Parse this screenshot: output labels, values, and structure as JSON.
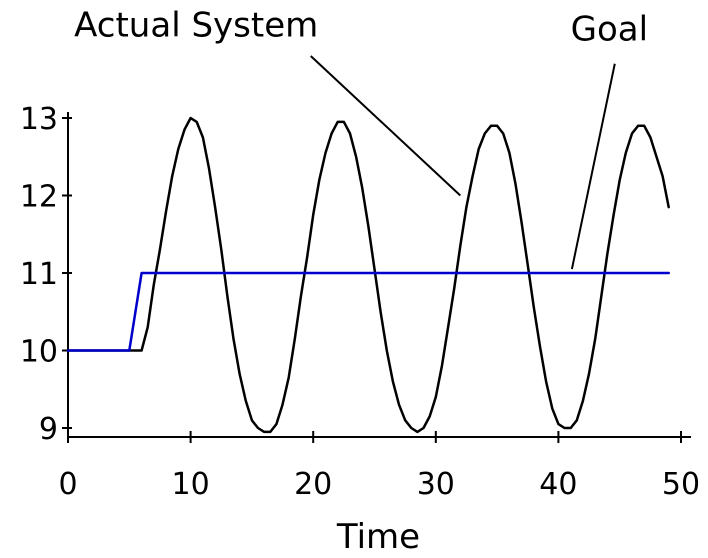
{
  "chart_data": {
    "type": "line",
    "xlabel": "Time",
    "ylabel": "",
    "xlim": [
      0,
      50
    ],
    "ylim": [
      9,
      13
    ],
    "x_ticks": [
      0,
      10,
      20,
      30,
      40,
      50
    ],
    "y_ticks": [
      9,
      10,
      11,
      12,
      13
    ],
    "x_tick_labels": [
      "0",
      "10",
      "20",
      "30",
      "40",
      "50"
    ],
    "y_tick_labels": [
      "9",
      "10",
      "11",
      "12",
      "13"
    ],
    "grid": false,
    "legend": "none",
    "series": [
      {
        "name": "Actual System",
        "color": "#000000",
        "points": [
          [
            0,
            10
          ],
          [
            1,
            10
          ],
          [
            2,
            10
          ],
          [
            3,
            10
          ],
          [
            4,
            10
          ],
          [
            5,
            10
          ],
          [
            5.5,
            10
          ],
          [
            6,
            10
          ],
          [
            6.5,
            10.3
          ],
          [
            7,
            10.85
          ],
          [
            7.5,
            11.3
          ],
          [
            8,
            11.8
          ],
          [
            8.5,
            12.25
          ],
          [
            9,
            12.6
          ],
          [
            9.5,
            12.85
          ],
          [
            10,
            13
          ],
          [
            10.5,
            12.95
          ],
          [
            11,
            12.75
          ],
          [
            11.5,
            12.35
          ],
          [
            12,
            11.85
          ],
          [
            12.5,
            11.3
          ],
          [
            13,
            10.7
          ],
          [
            13.5,
            10.15
          ],
          [
            14,
            9.7
          ],
          [
            14.5,
            9.35
          ],
          [
            15,
            9.1
          ],
          [
            15.5,
            9.0
          ],
          [
            16,
            8.95
          ],
          [
            16.5,
            8.95
          ],
          [
            17,
            9.05
          ],
          [
            17.5,
            9.3
          ],
          [
            18,
            9.65
          ],
          [
            18.5,
            10.15
          ],
          [
            19,
            10.7
          ],
          [
            19.5,
            11.2
          ],
          [
            20,
            11.75
          ],
          [
            20.5,
            12.2
          ],
          [
            21,
            12.55
          ],
          [
            21.5,
            12.8
          ],
          [
            22,
            12.95
          ],
          [
            22.5,
            12.95
          ],
          [
            23,
            12.8
          ],
          [
            23.5,
            12.5
          ],
          [
            24,
            12.1
          ],
          [
            24.5,
            11.6
          ],
          [
            25,
            11.05
          ],
          [
            25.5,
            10.5
          ],
          [
            26,
            10.0
          ],
          [
            26.5,
            9.6
          ],
          [
            27,
            9.3
          ],
          [
            27.5,
            9.1
          ],
          [
            28,
            9.0
          ],
          [
            28.5,
            8.95
          ],
          [
            29,
            9.0
          ],
          [
            29.5,
            9.15
          ],
          [
            30,
            9.4
          ],
          [
            30.5,
            9.8
          ],
          [
            31,
            10.3
          ],
          [
            31.5,
            10.8
          ],
          [
            32,
            11.35
          ],
          [
            32.5,
            11.85
          ],
          [
            33,
            12.25
          ],
          [
            33.5,
            12.6
          ],
          [
            34,
            12.8
          ],
          [
            34.5,
            12.9
          ],
          [
            35,
            12.9
          ],
          [
            35.5,
            12.8
          ],
          [
            36,
            12.55
          ],
          [
            36.5,
            12.15
          ],
          [
            37,
            11.65
          ],
          [
            37.5,
            11.1
          ],
          [
            38,
            10.55
          ],
          [
            38.5,
            10.05
          ],
          [
            39,
            9.6
          ],
          [
            39.5,
            9.25
          ],
          [
            40,
            9.05
          ],
          [
            40.5,
            9.0
          ],
          [
            41,
            9.0
          ],
          [
            41.5,
            9.1
          ],
          [
            42,
            9.35
          ],
          [
            42.5,
            9.7
          ],
          [
            43,
            10.15
          ],
          [
            43.5,
            10.7
          ],
          [
            44,
            11.25
          ],
          [
            44.5,
            11.75
          ],
          [
            45,
            12.2
          ],
          [
            45.5,
            12.55
          ],
          [
            46,
            12.8
          ],
          [
            46.5,
            12.9
          ],
          [
            47,
            12.9
          ],
          [
            47.5,
            12.75
          ],
          [
            48,
            12.5
          ],
          [
            48.5,
            12.25
          ],
          [
            49,
            11.85
          ]
        ]
      },
      {
        "name": "Goal",
        "color": "#0000cc",
        "points": [
          [
            0,
            10
          ],
          [
            5,
            10
          ],
          [
            6,
            11
          ],
          [
            49,
            11
          ]
        ]
      }
    ],
    "annotations": [
      {
        "label": "Actual System",
        "target_series": "Actual System",
        "text_anchor_data": [
          0.5,
          14.05
        ],
        "leader_from_data": [
          19.8,
          13.8
        ],
        "leader_to_data": [
          32,
          12
        ]
      },
      {
        "label": "Goal",
        "target_series": "Goal",
        "text_anchor_data": [
          41,
          14.0
        ],
        "leader_from_data": [
          44.6,
          13.7
        ],
        "leader_to_data": [
          41.1,
          11.05
        ]
      }
    ]
  }
}
